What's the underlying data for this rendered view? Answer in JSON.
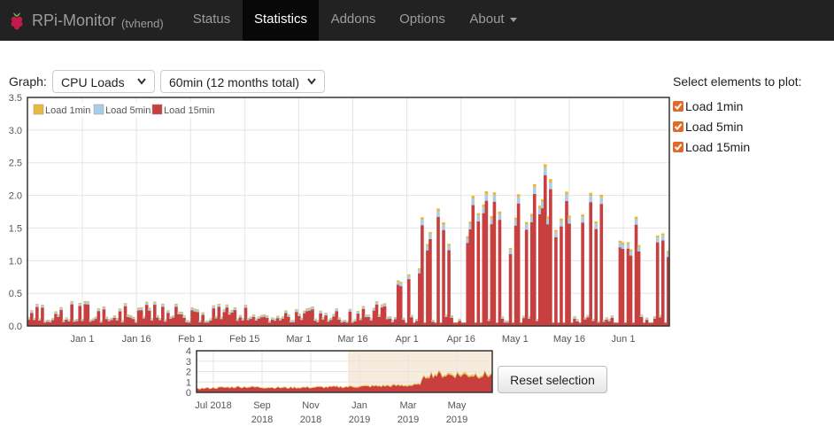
{
  "navbar": {
    "brand_title": "RPi-Monitor",
    "brand_host": "(tvhend)",
    "items": [
      {
        "label": "Status"
      },
      {
        "label": "Statistics"
      },
      {
        "label": "Addons"
      },
      {
        "label": "Options"
      },
      {
        "label": "About"
      }
    ],
    "active": "Statistics",
    "icons": [
      "raspberry-logo-icon",
      "caret-down-icon"
    ]
  },
  "controls": {
    "graph_label": "Graph:",
    "graph_select": "CPU Loads",
    "range_select": "60min (12 months total)",
    "elements_title": "Select elements to plot:",
    "elements": [
      {
        "label": "Load 1min",
        "checked": true
      },
      {
        "label": "Load 5min",
        "checked": true
      },
      {
        "label": "Load 15min",
        "checked": true
      }
    ],
    "reset_label": "Reset selection"
  },
  "colors": {
    "load1": "#e8b93a",
    "load5": "#a9cde6",
    "load15": "#c7403f",
    "checkbox": "#e06a2a",
    "navbar": "#222222"
  },
  "chart_data": [
    {
      "type": "area",
      "series": [
        {
          "name": "Load 1min"
        },
        {
          "name": "Load 5min"
        },
        {
          "name": "Load 15min"
        }
      ],
      "x_ticks": [
        "Jan 1",
        "Jan 16",
        "Feb 1",
        "Feb 15",
        "Mar 1",
        "Mar 16",
        "Apr 1",
        "Apr 16",
        "May 1",
        "May 16",
        "Jun 1"
      ],
      "y_ticks": [
        "0.0",
        "0.5",
        "1.0",
        "1.5",
        "2.0",
        "2.5",
        "3.0",
        "3.5"
      ],
      "ylim": [
        0,
        3.5
      ],
      "grid": true,
      "legend": "top-left",
      "load_envelope": [
        [
          0,
          0.3
        ],
        [
          0.1,
          0.35
        ],
        [
          0.5,
          0.25
        ],
        [
          0.55,
          0.4
        ],
        [
          0.56,
          0.6
        ],
        [
          0.6,
          1.1
        ],
        [
          0.63,
          2.2
        ],
        [
          0.68,
          2.0
        ],
        [
          0.7,
          2.6
        ],
        [
          0.75,
          2.0
        ],
        [
          0.8,
          2.3
        ],
        [
          0.82,
          2.45
        ],
        [
          0.88,
          2.2
        ],
        [
          0.92,
          1.6
        ],
        [
          0.95,
          1.95
        ],
        [
          1.0,
          1.2
        ]
      ]
    },
    {
      "type": "area",
      "x_ticks": [
        "Jul 2018",
        "Sep 2018",
        "Nov 2018",
        "Jan 2019",
        "Mar 2019",
        "May 2019"
      ],
      "y_ticks": [
        "0",
        "1",
        "2",
        "3",
        "4"
      ],
      "ylim": [
        0,
        4
      ],
      "selection": "Jan 1 2019 – Jun 2019",
      "load_envelope": [
        [
          0,
          0.4
        ],
        [
          0.15,
          0.6
        ],
        [
          0.3,
          0.5
        ],
        [
          0.5,
          0.6
        ],
        [
          0.75,
          0.8
        ],
        [
          0.78,
          2.0
        ],
        [
          1.0,
          2.0
        ]
      ]
    }
  ]
}
